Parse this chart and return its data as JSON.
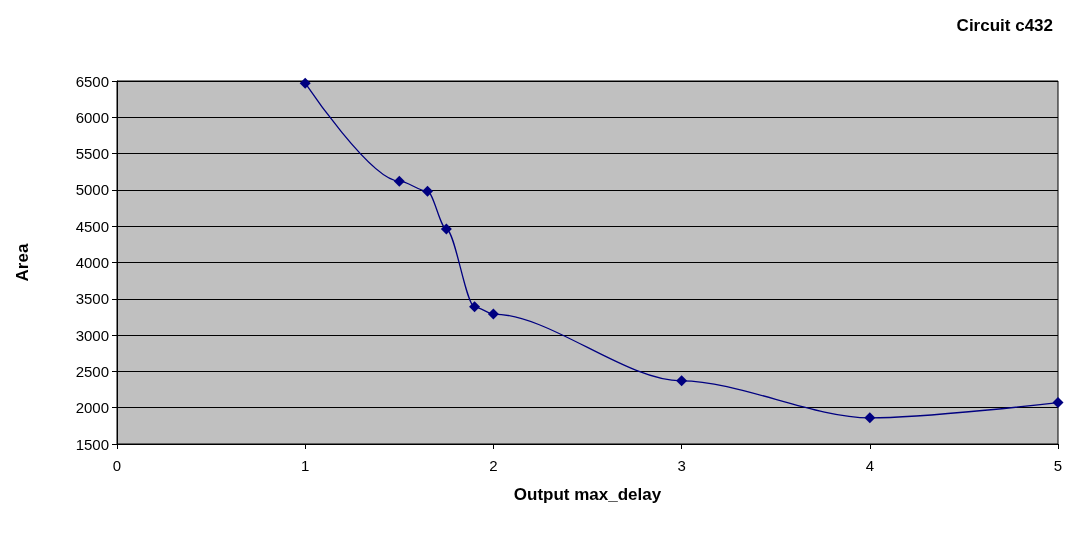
{
  "chart_data": {
    "type": "line",
    "title": "Circuit c432",
    "xlabel": "Output max_delay",
    "ylabel": "Area",
    "x": [
      1,
      1.5,
      1.65,
      1.75,
      1.9,
      2,
      3,
      4,
      5
    ],
    "series": [
      {
        "color": "#000080",
        "values": [
          6470,
          5120,
          4980,
          4460,
          3390,
          3290,
          2370,
          1860,
          2070
        ]
      }
    ],
    "xlim": [
      0,
      5
    ],
    "xticks": [
      0,
      1,
      2,
      3,
      4,
      5
    ],
    "ylim": [
      1500,
      6500
    ],
    "yticks": [
      1500,
      2000,
      2500,
      3000,
      3500,
      4000,
      4500,
      5000,
      5500,
      6000,
      6500
    ],
    "grid": "y",
    "marker": "diamond",
    "line_style": "solid"
  }
}
